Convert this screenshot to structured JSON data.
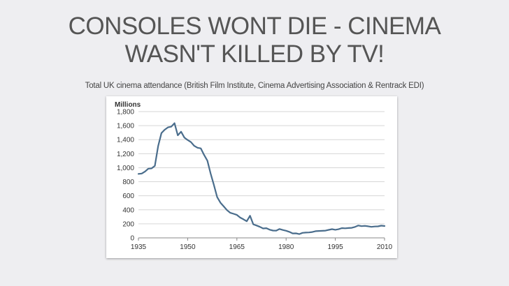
{
  "slide": {
    "title_line1": "CONSOLES WONT DIE - CINEMA",
    "title_line2": "WASN'T KILLED BY TV!",
    "subtitle": "Total UK cinema attendance (British Film Institute, Cinema Advertising Association & Rentrack EDI)"
  },
  "chart_data": {
    "type": "line",
    "title": "",
    "xlabel": "",
    "ylabel": "Millions",
    "xlim": [
      1935,
      2010
    ],
    "ylim": [
      0,
      1800
    ],
    "x_ticks": [
      "1935",
      "1950",
      "1965",
      "1980",
      "1995",
      "2010"
    ],
    "y_ticks": [
      "1,800",
      "1,600",
      "1,400",
      "1,200",
      "1,000",
      "800",
      "600",
      "400",
      "200",
      "0"
    ],
    "grid": true,
    "line_color": "#4a6d8c",
    "series": [
      {
        "x": [
          1935,
          1936,
          1937,
          1938,
          1939,
          1940,
          1941,
          1942,
          1943,
          1944,
          1945,
          1946,
          1947,
          1948,
          1949,
          1950,
          1951,
          1952,
          1953,
          1954,
          1955,
          1956,
          1957,
          1958,
          1959,
          1960,
          1961,
          1962,
          1963,
          1964,
          1965,
          1966,
          1967,
          1968,
          1969,
          1970,
          1971,
          1972,
          1973,
          1974,
          1975,
          1976,
          1977,
          1978,
          1979,
          1980,
          1981,
          1982,
          1983,
          1984,
          1985,
          1986,
          1987,
          1988,
          1989,
          1990,
          1991,
          1992,
          1993,
          1994,
          1995,
          1996,
          1997,
          1998,
          1999,
          2000,
          2001,
          2002,
          2003,
          2004,
          2005,
          2006,
          2007,
          2008,
          2009,
          2010
        ],
        "values": [
          912,
          917,
          946,
          987,
          990,
          1027,
          1309,
          1494,
          1541,
          1575,
          1585,
          1635,
          1462,
          1514,
          1430,
          1395,
          1365,
          1312,
          1285,
          1276,
          1182,
          1101,
          915,
          755,
          581,
          501,
          449,
          395,
          357,
          343,
          327,
          289,
          265,
          237,
          315,
          193,
          176,
          157,
          134,
          138,
          116,
          104,
          103,
          126,
          112,
          101,
          86,
          64,
          65,
          54,
          72,
          76,
          78,
          84,
          95,
          98,
          100,
          103,
          114,
          124,
          115,
          123,
          139,
          136,
          140,
          143,
          156,
          176,
          167,
          171,
          165,
          157,
          162,
          164,
          174,
          169
        ]
      }
    ]
  }
}
